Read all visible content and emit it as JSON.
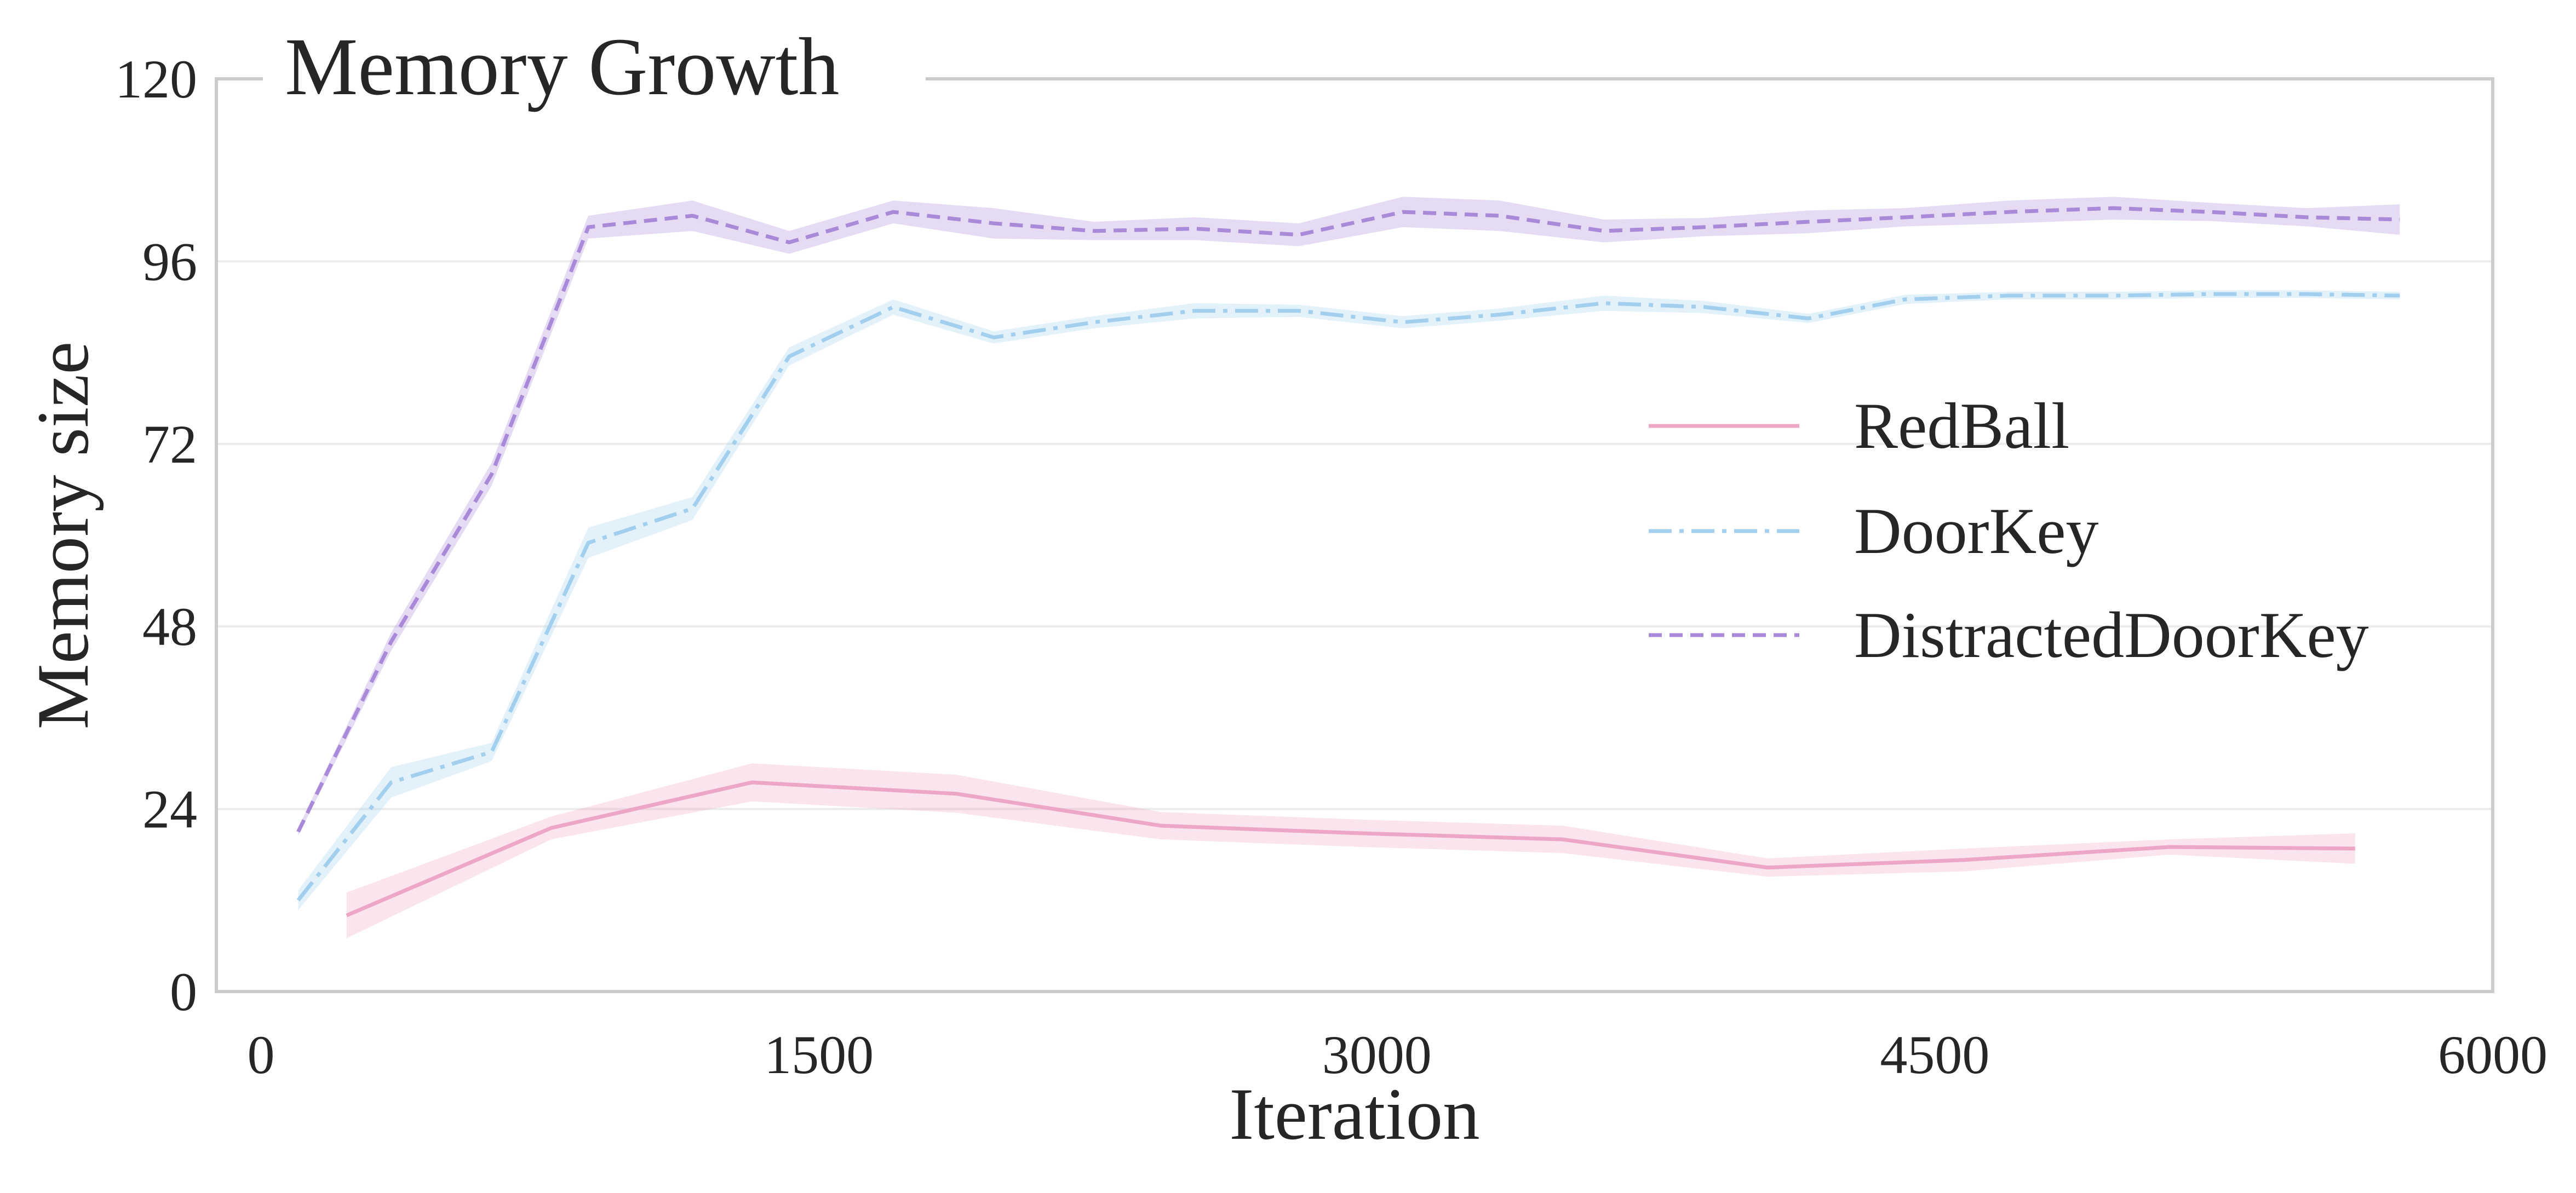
{
  "chart_data": {
    "type": "line",
    "title": "Memory Growth",
    "xlabel": "Iteration",
    "ylabel": "Memory size",
    "xlim": [
      -120,
      6000
    ],
    "ylim": [
      0,
      120
    ],
    "xticks": [
      "0",
      "1500",
      "3000",
      "4500",
      "6000"
    ],
    "yticks": [
      "0",
      "24",
      "48",
      "72",
      "96",
      "120"
    ],
    "grid": "horizontal",
    "legend_position": "center-right",
    "series": [
      {
        "name": "RedBall",
        "style": "solid",
        "color": "#eda6c6",
        "x": [
          230,
          780,
          1320,
          1870,
          2420,
          2960,
          3500,
          4050,
          4580,
          5130,
          5630
        ],
        "y": [
          10,
          21.5,
          27.5,
          26,
          21.8,
          20.8,
          20,
          16.3,
          17.3,
          19,
          18.8
        ],
        "band": [
          3,
          1.5,
          2.5,
          2.5,
          1.8,
          1.8,
          1.8,
          1.2,
          1.5,
          1,
          2
        ]
      },
      {
        "name": "DoorKey",
        "style": "dashdot",
        "color": "#a3cfee",
        "x": [
          100,
          350,
          620,
          880,
          1160,
          1420,
          1700,
          1970,
          2240,
          2510,
          2790,
          3070,
          3330,
          3610,
          3880,
          4160,
          4420,
          4700,
          4980,
          5240,
          5500,
          5750
        ],
        "y": [
          12,
          27.5,
          31.5,
          59,
          63.5,
          83.5,
          90,
          86,
          88,
          89.5,
          89.5,
          88,
          89,
          90.5,
          90,
          88.5,
          91,
          91.5,
          91.5,
          91.7,
          91.7,
          91.5
        ],
        "band": [
          1.3,
          2,
          1.2,
          2,
          1.5,
          1.2,
          1,
          0.8,
          0.8,
          1,
          0.8,
          0.8,
          0.8,
          1,
          0.8,
          0.6,
          0.6,
          0.5,
          0.5,
          0.5,
          0.5,
          0.5
        ]
      },
      {
        "name": "DistractedDoorKey",
        "style": "dashed",
        "color": "#a88ad8",
        "x": [
          100,
          350,
          620,
          880,
          1160,
          1420,
          1700,
          1970,
          2240,
          2510,
          2790,
          3070,
          3330,
          3610,
          3880,
          4160,
          4420,
          4700,
          4980,
          5240,
          5500,
          5750
        ],
        "y": [
          21,
          46,
          68,
          100.5,
          102,
          98.5,
          102.5,
          101,
          100,
          100.3,
          99.5,
          102.5,
          102,
          100,
          100.5,
          101.2,
          101.8,
          102.5,
          103,
          102.5,
          101.8,
          101.5
        ],
        "band": [
          0.5,
          1.2,
          1.5,
          1.5,
          2,
          1.5,
          1.5,
          2,
          1.2,
          1.5,
          1.5,
          2,
          2,
          1.5,
          1.2,
          1.5,
          1.2,
          1.5,
          1.5,
          1.2,
          1.2,
          2
        ]
      }
    ]
  }
}
